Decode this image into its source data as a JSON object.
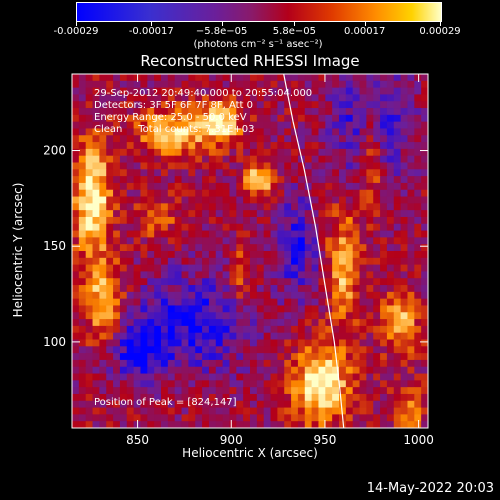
{
  "colorbar": {
    "tick_labels": [
      "-0.00029",
      "-0.00017",
      "−5.8e−05",
      "5.8e−05",
      "0.00017",
      "0.00029"
    ],
    "units": "(photons cm⁻² s⁻¹ asec⁻²)",
    "colors": [
      "#0000ff",
      "#6b1f9a",
      "#b3001a",
      "#ff8c00",
      "#ffffc8"
    ]
  },
  "info": {
    "time_range": "29-Sep-2012 20:49:40.000 to 20:55:04.000",
    "detectors": "Detectors: 3F 5F 6F 7F 8F, Att 0",
    "energy_range": "Energy Range: 25.0 - 50.0 keV",
    "clean": "Clean     Total counts: 7.31E+03",
    "peak": "Position of Peak = [824,147]"
  },
  "footer": {
    "timestamp": "14-May-2022 20:03"
  },
  "chart_data": {
    "type": "heatmap",
    "title": "Reconstructed RHESSI Image",
    "xlabel": "Heliocentric X (arcsec)",
    "ylabel": "Heliocentric Y (arcsec)",
    "xlim": [
      815,
      1005
    ],
    "ylim": [
      55,
      240
    ],
    "x_ticks": [
      850,
      900,
      950,
      1000
    ],
    "y_ticks": [
      100,
      150,
      200
    ],
    "value_range": [
      -0.00029,
      0.00029
    ],
    "peak": [
      824,
      147
    ],
    "limb": [
      [
        928,
        240
      ],
      [
        933,
        215
      ],
      [
        939,
        190
      ],
      [
        945,
        160
      ],
      [
        950,
        130
      ],
      [
        955,
        100
      ],
      [
        958,
        75
      ],
      [
        960,
        55
      ]
    ]
  }
}
